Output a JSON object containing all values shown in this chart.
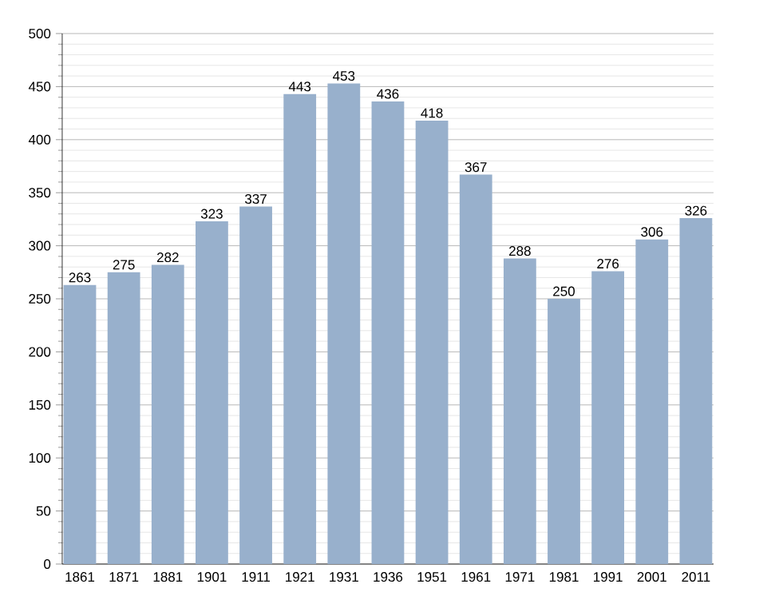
{
  "chart_data": {
    "type": "bar",
    "categories": [
      "1861",
      "1871",
      "1881",
      "1901",
      "1911",
      "1921",
      "1931",
      "1936",
      "1951",
      "1961",
      "1971",
      "1981",
      "1991",
      "2001",
      "2011"
    ],
    "values": [
      263,
      275,
      282,
      323,
      337,
      443,
      453,
      436,
      418,
      367,
      288,
      250,
      276,
      306,
      326
    ],
    "color": "#98b0cc",
    "ylim": [
      0,
      500
    ],
    "yticks": [
      0,
      50,
      100,
      150,
      200,
      250,
      300,
      350,
      400,
      450,
      500
    ],
    "grid": "y",
    "data_labels": true
  }
}
